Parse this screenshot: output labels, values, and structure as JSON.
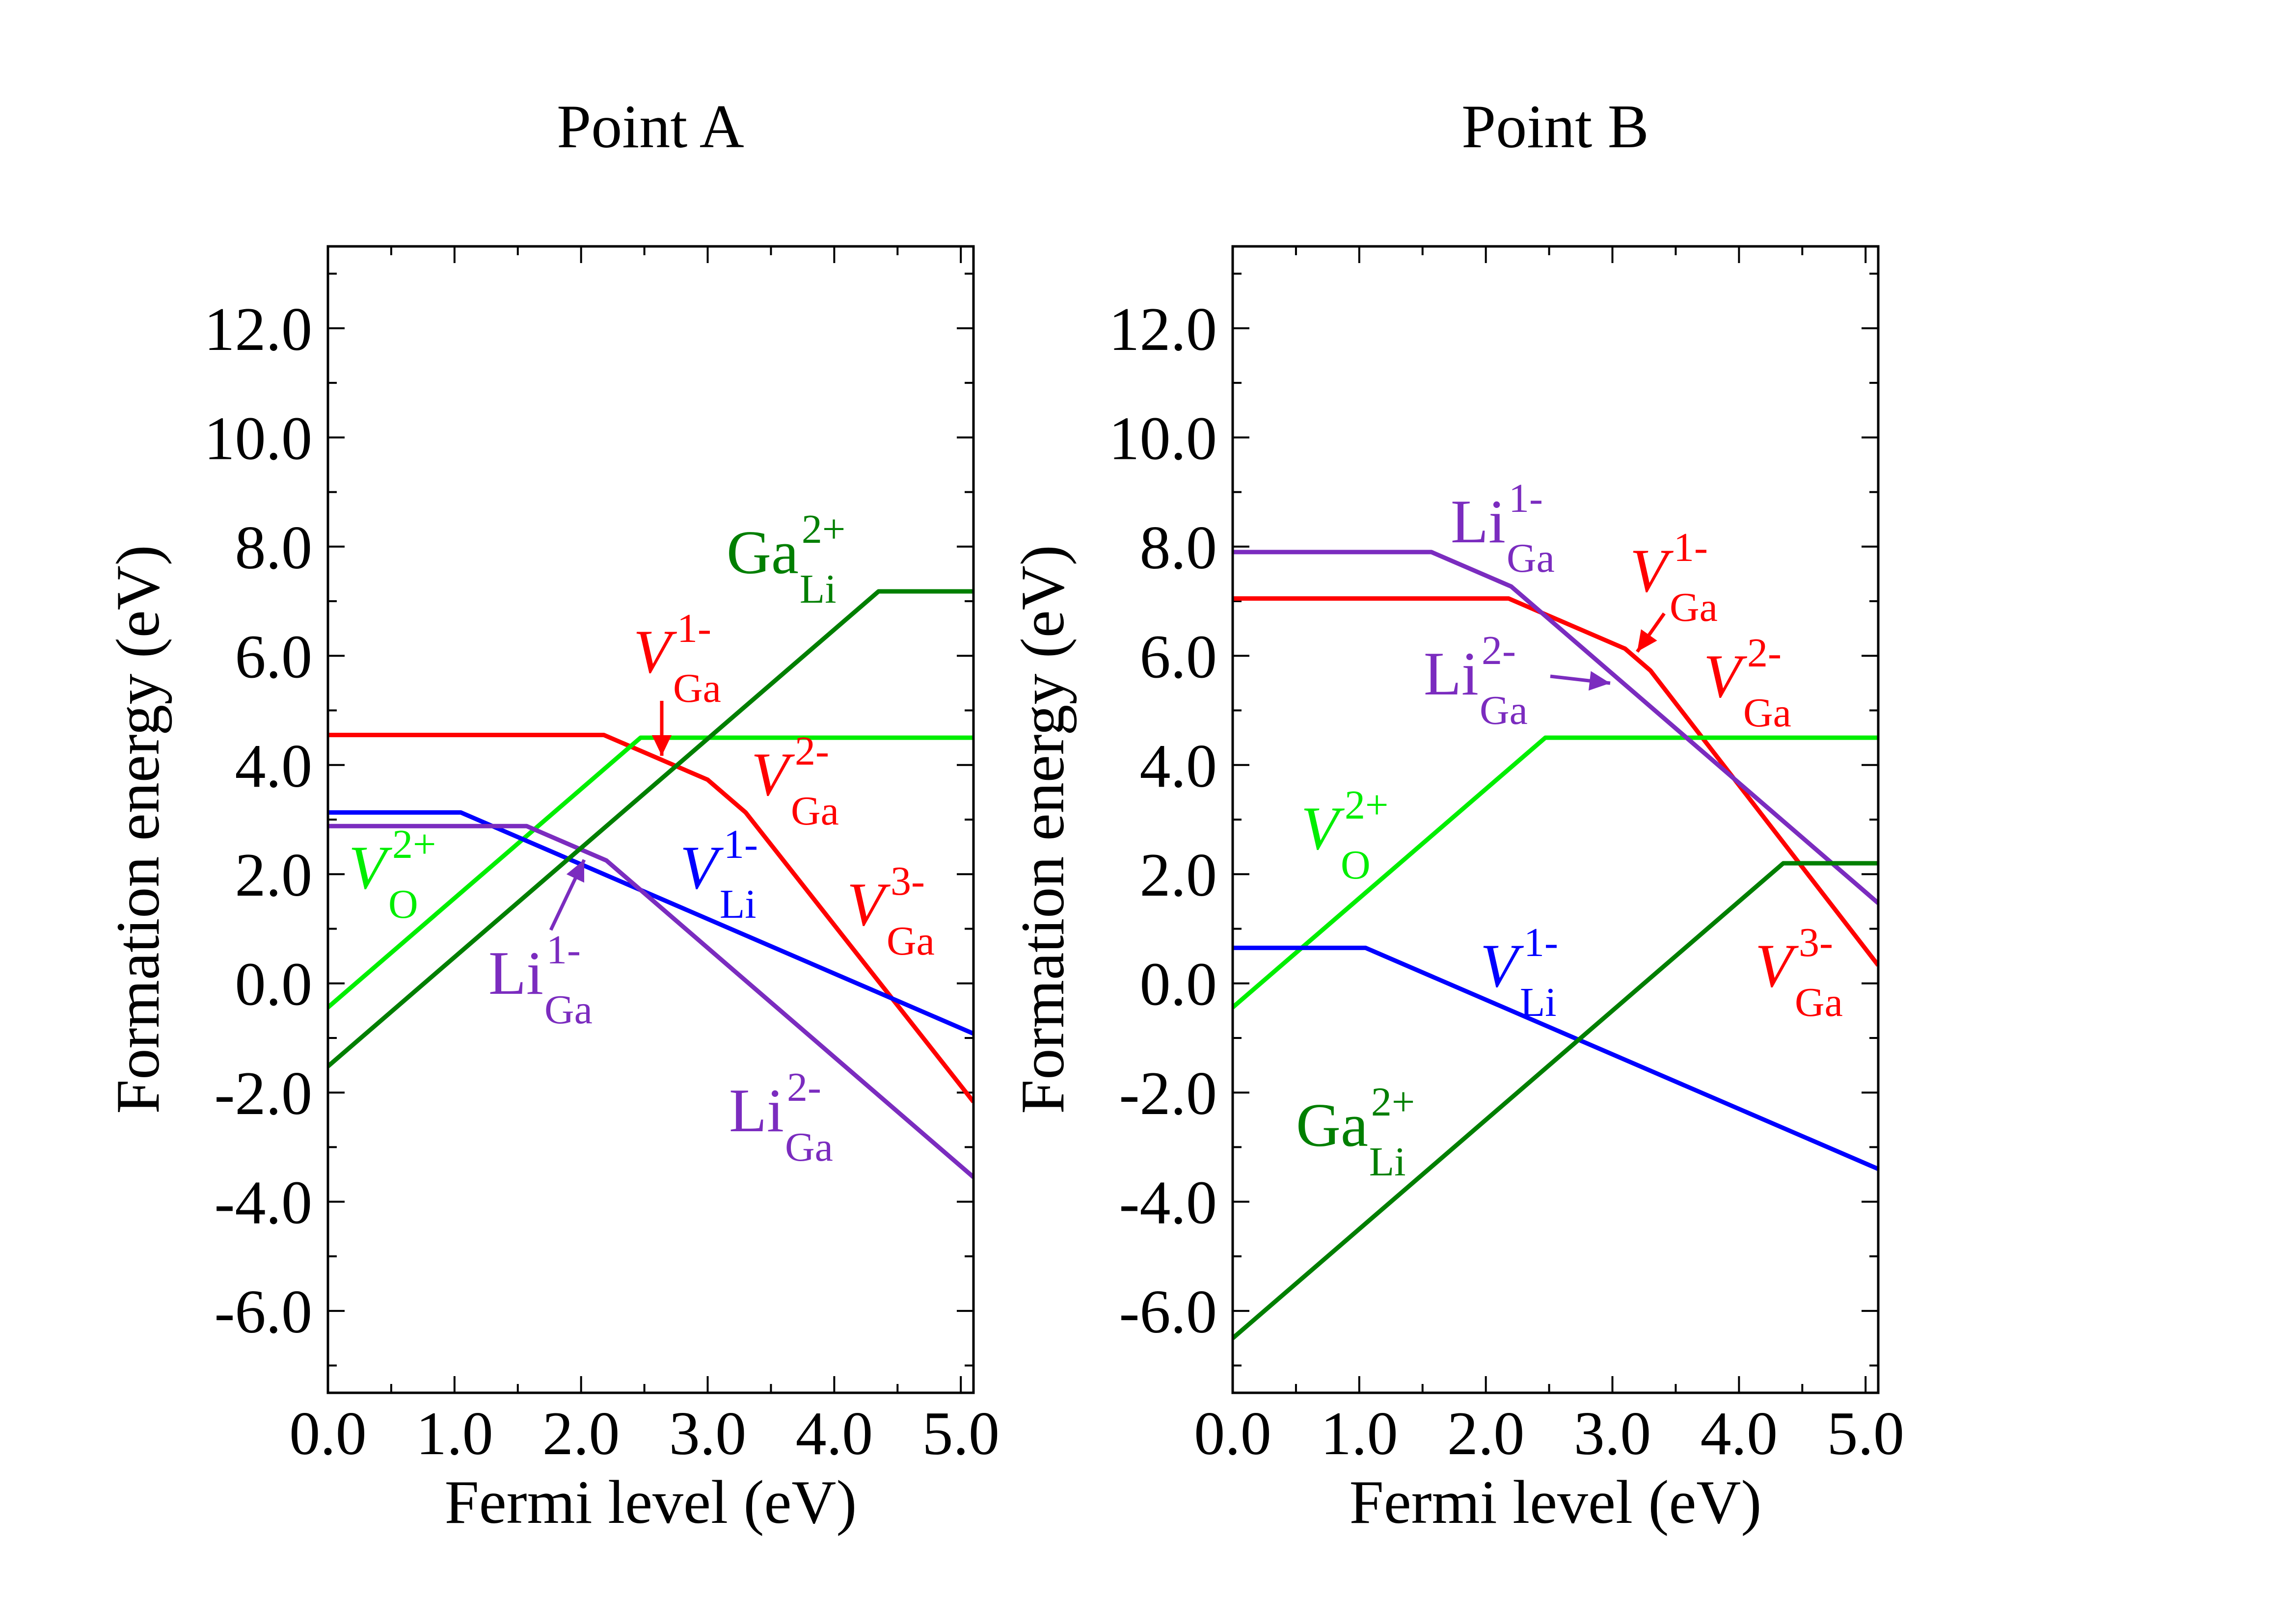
{
  "colors": {
    "V_Ga": "#ff0000",
    "V_O": "#00ee00",
    "V_Li": "#0000ff",
    "Li_Ga": "#7b2cbf",
    "Ga_Li": "#007f00"
  },
  "chart_data": [
    {
      "type": "line",
      "title": "Point A",
      "xlabel": "Fermi level (eV)",
      "ylabel": "Formation energy (eV)",
      "xlim": [
        0.0,
        5.1
      ],
      "ylim": [
        -7.5,
        13.5
      ],
      "xticks": [
        "0.0",
        "1.0",
        "2.0",
        "3.0",
        "4.0",
        "5.0"
      ],
      "yticks": [
        "-6.0",
        "-4.0",
        "-2.0",
        "0.0",
        "2.0",
        "4.0",
        "6.0",
        "8.0",
        "10.0",
        "12.0"
      ],
      "series": [
        {
          "name": "V_Ga",
          "color_key": "V_Ga",
          "x": [
            0.0,
            2.18,
            2.6,
            3.0,
            3.3,
            5.1
          ],
          "y": [
            4.55,
            4.55,
            4.13,
            3.73,
            3.13,
            -2.17
          ]
        },
        {
          "name": "V_O",
          "color_key": "V_O",
          "x": [
            0.0,
            2.47,
            5.1
          ],
          "y": [
            -0.44,
            4.5,
            4.5
          ]
        },
        {
          "name": "V_Li",
          "color_key": "V_Li",
          "x": [
            0.0,
            1.05,
            5.1
          ],
          "y": [
            3.13,
            3.13,
            -0.92
          ]
        },
        {
          "name": "Li_Ga",
          "color_key": "Li_Ga",
          "x": [
            0.0,
            1.57,
            2.2,
            5.1
          ],
          "y": [
            2.88,
            2.88,
            2.25,
            -3.55
          ]
        },
        {
          "name": "Ga_Li",
          "color_key": "Ga_Li",
          "x": [
            0.0,
            4.35,
            5.1
          ],
          "y": [
            -1.52,
            7.18,
            7.18
          ]
        }
      ],
      "annotations": [
        {
          "main": "Ga",
          "sub": "Li",
          "sup": "2+",
          "italic": false,
          "color_key": "Ga_Li"
        },
        {
          "main": "V",
          "sub": "Ga",
          "sup": "1-",
          "italic": true,
          "color_key": "V_Ga"
        },
        {
          "main": "V",
          "sub": "Ga",
          "sup": "2-",
          "italic": true,
          "color_key": "V_Ga"
        },
        {
          "main": "V",
          "sub": "Ga",
          "sup": "3-",
          "italic": true,
          "color_key": "V_Ga"
        },
        {
          "main": "V",
          "sub": "O",
          "sup": "2+",
          "italic": true,
          "color_key": "V_O"
        },
        {
          "main": "V",
          "sub": "Li",
          "sup": "1-",
          "italic": true,
          "color_key": "V_Li"
        },
        {
          "main": "Li",
          "sub": "Ga",
          "sup": "1-",
          "italic": false,
          "color_key": "Li_Ga"
        },
        {
          "main": "Li",
          "sub": "Ga",
          "sup": "2-",
          "italic": false,
          "color_key": "Li_Ga"
        }
      ]
    },
    {
      "type": "line",
      "title": "Point B",
      "xlabel": "Fermi level (eV)",
      "ylabel": "Formation energy (eV)",
      "xlim": [
        0.0,
        5.1
      ],
      "ylim": [
        -7.5,
        13.5
      ],
      "xticks": [
        "0.0",
        "1.0",
        "2.0",
        "3.0",
        "4.0",
        "5.0"
      ],
      "yticks": [
        "-6.0",
        "-4.0",
        "-2.0",
        "0.0",
        "2.0",
        "4.0",
        "6.0",
        "8.0",
        "10.0",
        "12.0"
      ],
      "series": [
        {
          "name": "V_Ga",
          "color_key": "V_Ga",
          "x": [
            0.0,
            2.18,
            3.1,
            3.3,
            5.1
          ],
          "y": [
            7.05,
            7.05,
            6.13,
            5.73,
            0.33
          ]
        },
        {
          "name": "V_O",
          "color_key": "V_O",
          "x": [
            0.0,
            2.47,
            5.1
          ],
          "y": [
            -0.44,
            4.5,
            4.5
          ]
        },
        {
          "name": "V_Li",
          "color_key": "V_Li",
          "x": [
            0.0,
            1.05,
            5.1
          ],
          "y": [
            0.65,
            0.65,
            -3.4
          ]
        },
        {
          "name": "Li_Ga",
          "color_key": "Li_Ga",
          "x": [
            0.0,
            1.57,
            2.2,
            5.1
          ],
          "y": [
            7.9,
            7.9,
            7.27,
            1.47
          ]
        },
        {
          "name": "Ga_Li",
          "color_key": "Ga_Li",
          "x": [
            0.0,
            4.35,
            5.1
          ],
          "y": [
            -6.5,
            2.2,
            2.2
          ]
        }
      ],
      "annotations": [
        {
          "main": "Li",
          "sub": "Ga",
          "sup": "1-",
          "italic": false,
          "color_key": "Li_Ga"
        },
        {
          "main": "V",
          "sub": "Ga",
          "sup": "1-",
          "italic": true,
          "color_key": "V_Ga"
        },
        {
          "main": "Li",
          "sub": "Ga",
          "sup": "2-",
          "italic": false,
          "color_key": "Li_Ga"
        },
        {
          "main": "V",
          "sub": "Ga",
          "sup": "2-",
          "italic": true,
          "color_key": "V_Ga"
        },
        {
          "main": "V",
          "sub": "O",
          "sup": "2+",
          "italic": true,
          "color_key": "V_O"
        },
        {
          "main": "V",
          "sub": "Li",
          "sup": "1-",
          "italic": true,
          "color_key": "V_Li"
        },
        {
          "main": "V",
          "sub": "Ga",
          "sup": "3-",
          "italic": true,
          "color_key": "V_Ga"
        },
        {
          "main": "Ga",
          "sub": "Li",
          "sup": "2+",
          "italic": false,
          "color_key": "Ga_Li"
        }
      ]
    }
  ]
}
